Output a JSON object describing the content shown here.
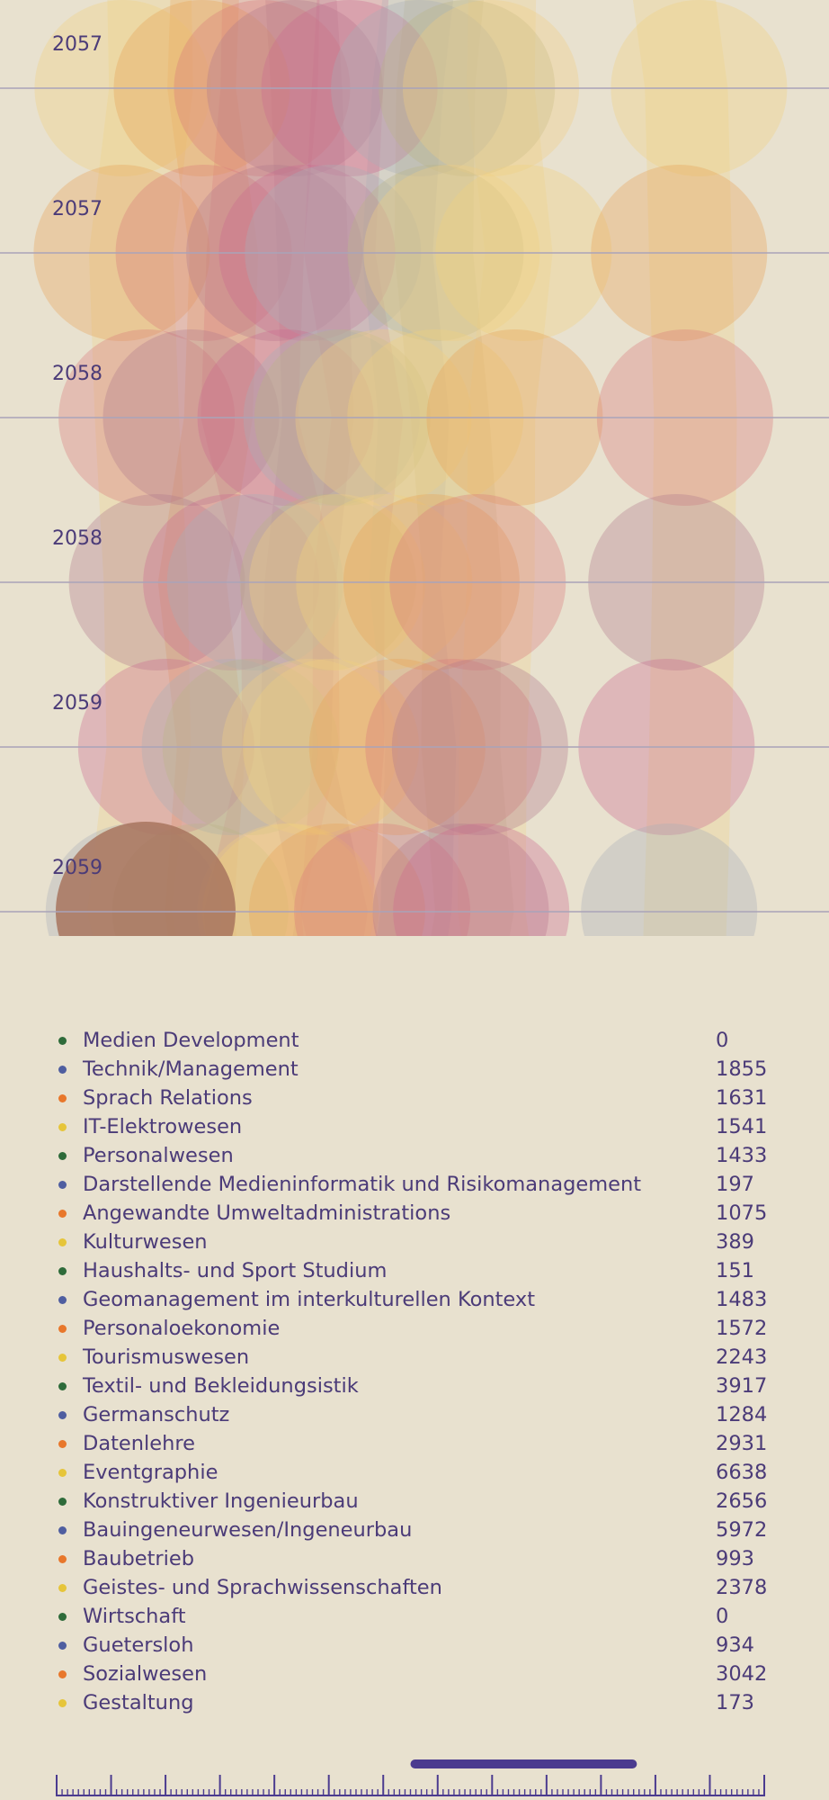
{
  "colors": {
    "background": "#e8e1cf",
    "text": "#4b3b78",
    "gridline": "#a9a3b9",
    "scrubber": "#4b3b8f",
    "dot_cycle": [
      "#2e6b3a",
      "#4f5ea0",
      "#e8772b",
      "#e6c53a"
    ],
    "band_palette": [
      "#f1d27e",
      "#e9a357",
      "#d97b7a",
      "#b37c8c",
      "#cb6b8e",
      "#a9b0b8",
      "#b9b487",
      "#f0cf84"
    ]
  },
  "chart_data": {
    "type": "area",
    "rows": [
      "2057",
      "2057",
      "2058",
      "2058",
      "2059",
      "2059"
    ],
    "grid": true
  },
  "legend": [
    {
      "name": "Medien Development",
      "value": "0"
    },
    {
      "name": "Technik/Management",
      "value": "1855"
    },
    {
      "name": "Sprach Relations",
      "value": "1631"
    },
    {
      "name": "IT-Elektrowesen",
      "value": "1541"
    },
    {
      "name": "Personalwesen",
      "value": "1433"
    },
    {
      "name": "Darstellende Medieninformatik und Risikomanagement",
      "value": "197"
    },
    {
      "name": "Angewandte Umweltadministrations",
      "value": "1075"
    },
    {
      "name": "Kulturwesen",
      "value": "389"
    },
    {
      "name": "Haushalts- und Sport Studium",
      "value": "151"
    },
    {
      "name": "Geomanagement im interkulturellen Kontext",
      "value": "1483"
    },
    {
      "name": "Personaloekonomie",
      "value": "1572"
    },
    {
      "name": "Tourismuswesen",
      "value": "2243"
    },
    {
      "name": "Textil- und Bekleidungsistik",
      "value": "3917"
    },
    {
      "name": "Germanschutz",
      "value": "1284"
    },
    {
      "name": "Datenlehre",
      "value": "2931"
    },
    {
      "name": "Eventgraphie",
      "value": "6638"
    },
    {
      "name": "Konstruktiver Ingenieurbau",
      "value": "2656"
    },
    {
      "name": "Bauingeneurwesen/Ingeneurbau",
      "value": "5972"
    },
    {
      "name": "Baubetrieb",
      "value": "993"
    },
    {
      "name": "Geistes- und Sprachwissenschaften",
      "value": "2378"
    },
    {
      "name": "Wirtschaft",
      "value": "0"
    },
    {
      "name": "Guetersloh",
      "value": "934"
    },
    {
      "name": "Sozialwesen",
      "value": "3042"
    },
    {
      "name": "Gestaltung",
      "value": "173"
    }
  ],
  "scrubber": {
    "icon": "timeline-scrubber",
    "selection_start": 0.5,
    "selection_end": 0.82
  }
}
